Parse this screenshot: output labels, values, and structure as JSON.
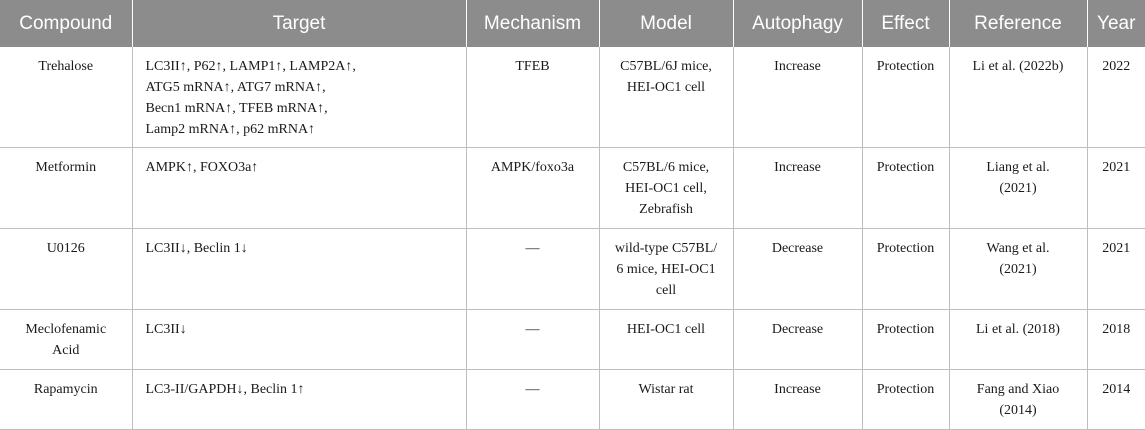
{
  "headers": {
    "compound": "Compound",
    "target": "Target",
    "mechanism": "Mechanism",
    "model": "Model",
    "autophagy": "Autophagy",
    "effect": "Effect",
    "reference": "Reference",
    "year": "Year"
  },
  "rows": [
    {
      "compound": "Trehalose",
      "target": [
        "LC3II↑, P62↑, LAMP1↑, LAMP2A↑,",
        "ATG5 mRNA↑, ATG7 mRNA↑,",
        "Becn1 mRNA↑, TFEB mRNA↑,",
        "Lamp2 mRNA↑, p62 mRNA↑"
      ],
      "mechanism": "TFEB",
      "model": [
        "C57BL/6J mice,",
        "HEI-OC1 cell"
      ],
      "autophagy": "Increase",
      "effect": "Protection",
      "reference": [
        "Li et al. (2022b)"
      ],
      "year": "2022"
    },
    {
      "compound": "Metformin",
      "target": [
        "AMPK↑, FOXO3a↑"
      ],
      "mechanism": "AMPK/foxo3a",
      "model": [
        "C57BL/6 mice,",
        "HEI-OC1 cell,",
        "Zebrafish"
      ],
      "autophagy": "Increase",
      "effect": "Protection",
      "reference": [
        "Liang et al.",
        "(2021)"
      ],
      "year": "2021"
    },
    {
      "compound": "U0126",
      "target": [
        "LC3II↓, Beclin 1↓"
      ],
      "mechanism": "—",
      "model": [
        "wild-type C57BL/",
        "6 mice, HEI-OC1",
        "cell"
      ],
      "autophagy": "Decrease",
      "effect": "Protection",
      "reference": [
        "Wang et al.",
        "(2021)"
      ],
      "year": "2021"
    },
    {
      "compound": "Meclofenamic\nAcid",
      "target": [
        "LC3II↓"
      ],
      "mechanism": "—",
      "model": [
        "HEI-OC1 cell"
      ],
      "autophagy": "Decrease",
      "effect": "Protection",
      "reference": [
        "Li et al. (2018)"
      ],
      "year": "2018"
    },
    {
      "compound": "Rapamycin",
      "target": [
        "LC3-II/GAPDH↓, Beclin 1↑"
      ],
      "mechanism": "—",
      "model": [
        "Wistar rat"
      ],
      "autophagy": "Increase",
      "effect": "Protection",
      "reference": [
        "Fang and Xiao",
        "(2014)"
      ],
      "year": "2014"
    }
  ]
}
